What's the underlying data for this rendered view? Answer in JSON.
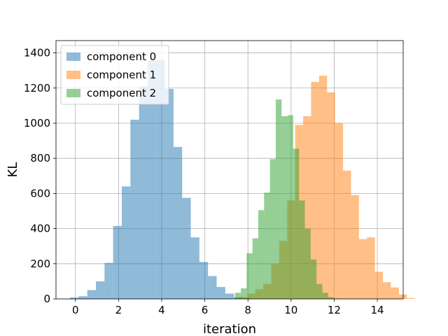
{
  "chart_data": {
    "type": "histogram",
    "xlabel": "iteration",
    "ylabel": "KL",
    "xlim": [
      -0.9,
      15.2
    ],
    "ylim": [
      0,
      1470
    ],
    "xticks": [
      "0",
      "2",
      "4",
      "6",
      "8",
      "10",
      "12",
      "14"
    ],
    "yticks": [
      "0",
      "200",
      "400",
      "600",
      "800",
      "1000",
      "1200",
      "1400"
    ],
    "xtick_values": [
      0,
      2,
      4,
      6,
      8,
      10,
      12,
      14
    ],
    "ytick_values": [
      0,
      200,
      400,
      600,
      800,
      1000,
      1200,
      1400
    ],
    "grid": true,
    "legend_position": "top-left",
    "bar_alpha": 0.5,
    "series": [
      {
        "name": "component 0",
        "color": "#1f77b4",
        "bin_start": -0.25,
        "bin_width": 0.4,
        "values": [
          8,
          15,
          50,
          100,
          205,
          415,
          640,
          1020,
          1210,
          1355,
          1360,
          1195,
          865,
          575,
          350,
          210,
          130,
          68,
          30,
          10,
          5
        ]
      },
      {
        "name": "component 1",
        "color": "#ff7f0e",
        "bin_start": 7.6,
        "bin_width": 0.37,
        "values": [
          10,
          30,
          55,
          85,
          200,
          330,
          560,
          990,
          1040,
          1235,
          1270,
          1175,
          1000,
          730,
          590,
          340,
          350,
          155,
          95,
          65,
          25,
          5
        ]
      },
      {
        "name": "component 2",
        "color": "#2ca02c",
        "bin_start": 7.4,
        "bin_width": 0.27,
        "values": [
          35,
          60,
          260,
          345,
          505,
          605,
          795,
          1135,
          1040,
          1045,
          855,
          560,
          400,
          225,
          85,
          35,
          10,
          3
        ]
      }
    ]
  }
}
